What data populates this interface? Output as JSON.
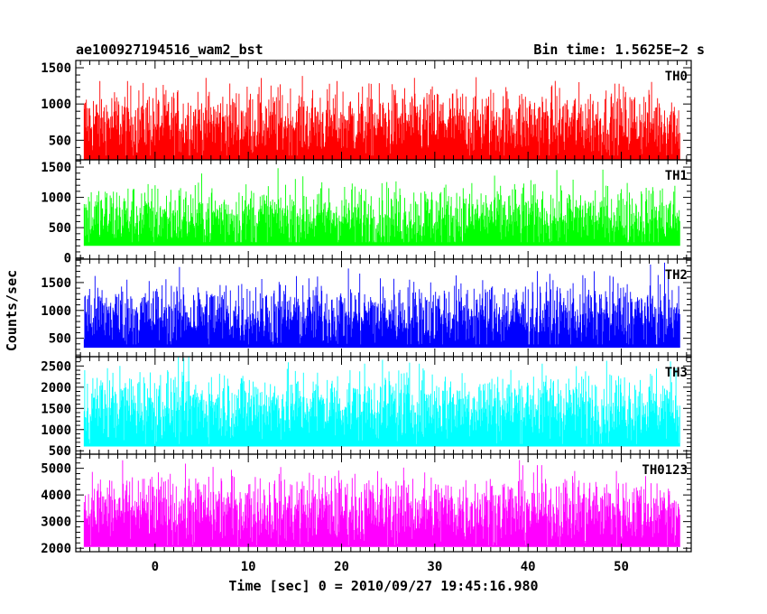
{
  "header": {
    "title_left": "ae100927194516_wam2_bst",
    "title_right": "Bin time: 1.5625E−2 s"
  },
  "chart_data": {
    "type": "line",
    "title": "ae100927194516_wam2_bst",
    "subtitle": "Bin time: 1.5625E−2 s",
    "xlabel": "Time [sec] 0 = 2010/09/27 19:45:16.980",
    "ylabel": "Counts/sec",
    "xlim": [
      -8.5,
      57.5
    ],
    "x_ticks": [
      0,
      10,
      20,
      30,
      40,
      50
    ],
    "data_x_range": [
      -7.6,
      56.3
    ],
    "bin_time": 0.015625,
    "grid": false,
    "panels": [
      {
        "name": "TH0",
        "color": "#ff0000",
        "ylim": [
          230,
          1600
        ],
        "y_ticks": [
          500,
          1000,
          1500
        ],
        "baseline": 230,
        "mean": 760,
        "low": 380,
        "high": 1500
      },
      {
        "name": "TH1",
        "color": "#00ff00",
        "ylim": [
          -20,
          1620
        ],
        "y_ticks": [
          0,
          500,
          1000,
          1500
        ],
        "baseline": 200,
        "mean": 700,
        "low": 250,
        "high": 1480
      },
      {
        "name": "TH2",
        "color": "#0000ff",
        "ylim": [
          170,
          1920
        ],
        "y_ticks": [
          500,
          1000,
          1500
        ],
        "baseline": 330,
        "mean": 950,
        "low": 420,
        "high": 1820
      },
      {
        "name": "TH3",
        "color": "#00ffff",
        "ylim": [
          420,
          2720
        ],
        "y_ticks": [
          500,
          1000,
          1500,
          2000,
          2500
        ],
        "baseline": 600,
        "mean": 1600,
        "low": 700,
        "high": 2650
      },
      {
        "name": "TH0123",
        "color": "#ff00ff",
        "ylim": [
          1870,
          5530
        ],
        "y_ticks": [
          2000,
          3000,
          4000,
          5000
        ],
        "baseline": 2050,
        "mean": 3500,
        "low": 2300,
        "high": 5350
      }
    ]
  }
}
